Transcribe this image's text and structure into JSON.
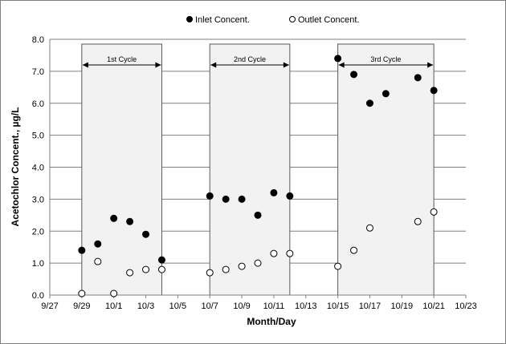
{
  "chart_data": {
    "type": "scatter",
    "xlabel": "Month/Day",
    "ylabel": "Acetochlor Concent., µg/L",
    "x_origin": "9/27",
    "xlim": [
      0,
      26
    ],
    "ylim": [
      0,
      8
    ],
    "y_step": 1,
    "x_tick_step": 2,
    "x_tick_labels": [
      "9/27",
      "9/29",
      "10/1",
      "10/3",
      "10/5",
      "10/7",
      "10/9",
      "10/11",
      "10/13",
      "10/15",
      "10/17",
      "10/19",
      "10/21",
      "10/23"
    ],
    "y_tick_labels": [
      "0.0",
      "1.0",
      "2.0",
      "3.0",
      "4.0",
      "5.0",
      "6.0",
      "7.0",
      "8.0"
    ],
    "grid": "horizontal",
    "legend_position": "top",
    "series": [
      {
        "name": "Inlet Concent.",
        "marker": "filled-circle",
        "color": "#000000",
        "points": [
          {
            "x": "9/29",
            "y": 1.4
          },
          {
            "x": "9/30",
            "y": 1.6
          },
          {
            "x": "10/1",
            "y": 2.4
          },
          {
            "x": "10/2",
            "y": 2.3
          },
          {
            "x": "10/3",
            "y": 1.9
          },
          {
            "x": "10/4",
            "y": 1.1
          },
          {
            "x": "10/7",
            "y": 3.1
          },
          {
            "x": "10/8",
            "y": 3.0
          },
          {
            "x": "10/9",
            "y": 3.0
          },
          {
            "x": "10/10",
            "y": 2.5
          },
          {
            "x": "10/11",
            "y": 3.2
          },
          {
            "x": "10/12",
            "y": 3.1
          },
          {
            "x": "10/15",
            "y": 7.4
          },
          {
            "x": "10/16",
            "y": 6.9
          },
          {
            "x": "10/17",
            "y": 6.0
          },
          {
            "x": "10/18",
            "y": 6.3
          },
          {
            "x": "10/20",
            "y": 6.8
          },
          {
            "x": "10/21",
            "y": 6.4
          }
        ]
      },
      {
        "name": "Outlet Concent.",
        "marker": "open-circle",
        "color": "#000000",
        "points": [
          {
            "x": "9/29",
            "y": 0.05
          },
          {
            "x": "9/30",
            "y": 1.05
          },
          {
            "x": "10/1",
            "y": 0.05
          },
          {
            "x": "10/2",
            "y": 0.7
          },
          {
            "x": "10/3",
            "y": 0.8
          },
          {
            "x": "10/4",
            "y": 0.8
          },
          {
            "x": "10/7",
            "y": 0.7
          },
          {
            "x": "10/8",
            "y": 0.8
          },
          {
            "x": "10/9",
            "y": 0.9
          },
          {
            "x": "10/10",
            "y": 1.0
          },
          {
            "x": "10/11",
            "y": 1.3
          },
          {
            "x": "10/12",
            "y": 1.3
          },
          {
            "x": "10/15",
            "y": 0.9
          },
          {
            "x": "10/16",
            "y": 1.4
          },
          {
            "x": "10/17",
            "y": 2.1
          },
          {
            "x": "10/20",
            "y": 2.3
          },
          {
            "x": "10/21",
            "y": 2.6
          }
        ]
      }
    ],
    "cycles": [
      {
        "label": "1st Cycle",
        "start": "9/29",
        "end": "10/4"
      },
      {
        "label": "2nd Cycle",
        "start": "10/7",
        "end": "10/12"
      },
      {
        "label": "3rd Cycle",
        "start": "10/15",
        "end": "10/21"
      }
    ],
    "cycle_box_top": 7.85
  }
}
